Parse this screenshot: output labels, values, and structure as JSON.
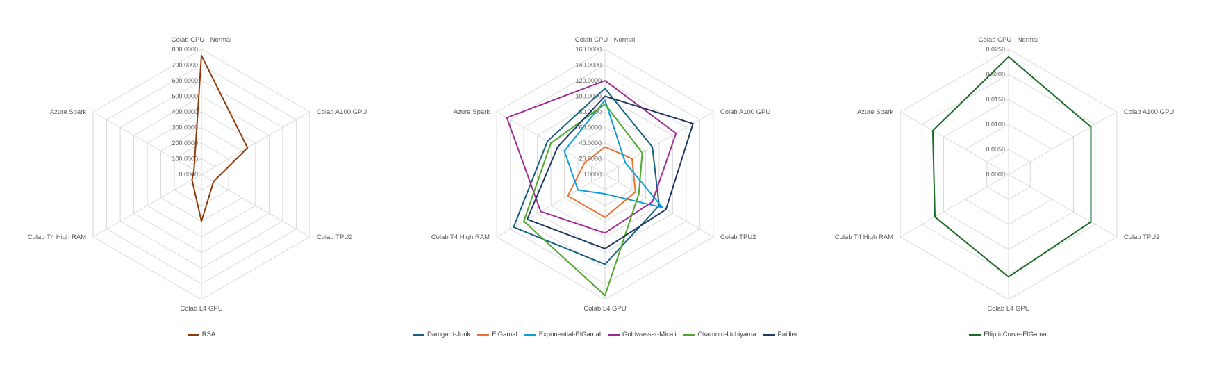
{
  "page": {
    "background": "#FFFFFF",
    "grid_color": "#D9D9D9",
    "label_color": "#595959"
  },
  "chart_data": [
    {
      "type": "radar",
      "title": "",
      "grid": true,
      "legend_position": "bottom",
      "categories": [
        "Colab CPU - Normal",
        "Colab A100 GPU",
        "Colab TPU2",
        "Colab L4 GPU",
        "Colab T4 High RAM",
        "Azure Spark"
      ],
      "ticks": [
        "0.0000",
        "100.0000",
        "200.0000",
        "300.0000",
        "400.0000",
        "500.0000",
        "600.0000",
        "700.0000",
        "800.0000"
      ],
      "rmax": 800,
      "series": [
        {
          "name": "RSA",
          "color": "#8E3B0B",
          "values": [
            760,
            340,
            90,
            300,
            70,
            55
          ]
        }
      ]
    },
    {
      "type": "radar",
      "title": "",
      "grid": true,
      "legend_position": "bottom",
      "categories": [
        "Colab CPU - Normal",
        "Colab A100 GPU",
        "Colab TPU2",
        "Colab L4 GPU",
        "Colab T4 High RAM",
        "Azure Spark"
      ],
      "ticks": [
        "0.0000",
        "20.0000",
        "40.0000",
        "60.0000",
        "80.0000",
        "100.0000",
        "120.0000",
        "140.0000",
        "160.0000"
      ],
      "rmax": 160,
      "series": [
        {
          "name": "Damgard-Jurik",
          "color": "#156082",
          "values": [
            110,
            70,
            80,
            115,
            135,
            85
          ]
        },
        {
          "name": "ElGamal",
          "color": "#E97132",
          "values": [
            35,
            40,
            45,
            55,
            55,
            30
          ]
        },
        {
          "name": "Exponential-ElGamal",
          "color": "#0F9ED5",
          "values": [
            95,
            30,
            85,
            25,
            40,
            60
          ]
        },
        {
          "name": "Goldwasser-Micali",
          "color": "#A02B93",
          "values": [
            120,
            105,
            70,
            75,
            95,
            145
          ]
        },
        {
          "name": "Okamoto-Uchiyama",
          "color": "#4EA72E",
          "values": [
            90,
            55,
            50,
            155,
            120,
            80
          ]
        },
        {
          "name": "Paillier",
          "color": "#1F3864",
          "values": [
            100,
            130,
            90,
            95,
            115,
            70
          ]
        }
      ]
    },
    {
      "type": "radar",
      "title": "",
      "grid": true,
      "legend_position": "bottom",
      "categories": [
        "Colab CPU - Normal",
        "Colab A100 GPU",
        "Colab TPU2",
        "Colab L4 GPU",
        "Colab T4 High RAM",
        "Azure Spark"
      ],
      "ticks": [
        "0.0000",
        "0.0050",
        "0.0100",
        "0.0150",
        "0.0200",
        "0.0250"
      ],
      "rmax": 0.025,
      "series": [
        {
          "name": "EllipticCurve-ElGamal",
          "color": "#196B24",
          "values": [
            0.0235,
            0.019,
            0.019,
            0.0205,
            0.017,
            0.0175
          ]
        }
      ]
    }
  ]
}
